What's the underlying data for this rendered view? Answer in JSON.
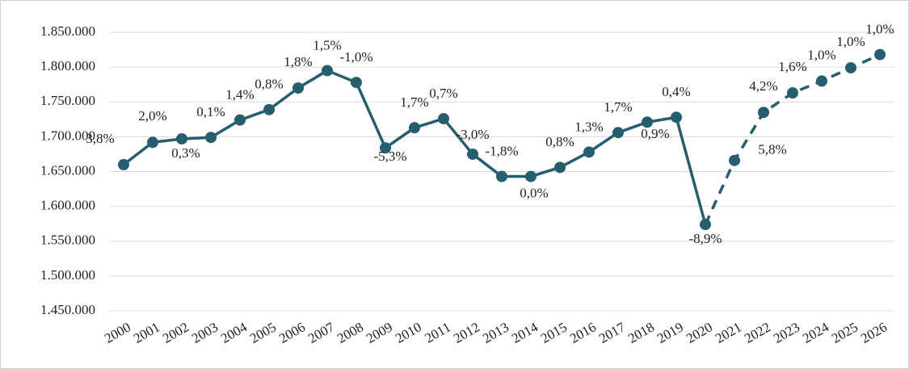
{
  "chart_data": {
    "type": "line",
    "categories": [
      "2000",
      "2001",
      "2002",
      "2003",
      "2004",
      "2005",
      "2006",
      "2007",
      "2008",
      "2009",
      "2010",
      "2011",
      "2012",
      "2013",
      "2014",
      "2015",
      "2016",
      "2017",
      "2018",
      "2019",
      "2020",
      "2021",
      "2022",
      "2023",
      "2024",
      "2025",
      "2026"
    ],
    "series": [
      {
        "color": "#255e6e",
        "values": [
          1660000,
          1692000,
          1697000,
          1699000,
          1724000,
          1739000,
          1770000,
          1795000,
          1778000,
          1684000,
          1713000,
          1726000,
          1675000,
          1643000,
          1643000,
          1656000,
          1678000,
          1706000,
          1721000,
          1728000,
          1574000,
          1666000,
          1735000,
          1763000,
          1780000,
          1799000,
          1818000
        ],
        "point_labels": [
          "3,8%",
          "2,0%",
          "0,3%",
          "0,1%",
          "1,4%",
          "0,8%",
          "1,8%",
          "1,5%",
          "-1,0%",
          "-5,3%",
          "1,7%",
          "0,7%",
          "-3,0%",
          "-1,8%",
          "0,0%",
          "0,8%",
          "1,3%",
          "1,7%",
          "0,9%",
          "0,4%",
          "-8,9%",
          "5,8%",
          "4,2%",
          "1,6%",
          "1,0%",
          "1,0%",
          "1,0%"
        ],
        "dashed_after": "2020"
      }
    ],
    "ylim": [
      1450000,
      1850000
    ],
    "yticks": [
      {
        "value": 1450000,
        "label": "1.450.000"
      },
      {
        "value": 1500000,
        "label": "1.500.000"
      },
      {
        "value": 1550000,
        "label": "1.550.000"
      },
      {
        "value": 1600000,
        "label": "1.600.000"
      },
      {
        "value": 1650000,
        "label": "1.650.000"
      },
      {
        "value": 1700000,
        "label": "1.700.000"
      },
      {
        "value": 1750000,
        "label": "1.750.000"
      },
      {
        "value": 1800000,
        "label": "1.800.000"
      },
      {
        "value": 1850000,
        "label": "1.850.000"
      }
    ],
    "grid": true
  }
}
